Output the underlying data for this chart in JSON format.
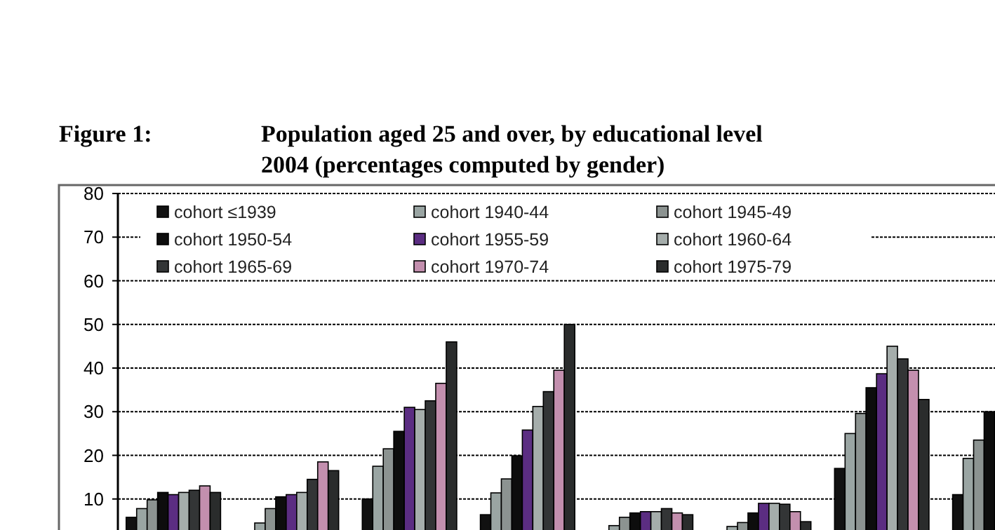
{
  "chart_data": {
    "type": "bar",
    "title": "Population aged 25 and over, by educational level",
    "subtitle": "2004 (percentages computed by gender)",
    "annotations": [
      "Figure 1:"
    ],
    "categories": [
      null,
      null,
      null,
      null,
      null,
      null,
      null,
      null
    ],
    "series": [
      {
        "name": "cohort ≤1939",
        "color": "#111111",
        "values": [
          5.8,
          null,
          10,
          6.4,
          null,
          null,
          17,
          11
        ]
      },
      {
        "name": "cohort 1940-44",
        "color": "#9aa5a3",
        "values": [
          7.8,
          4.5,
          17.5,
          11.4,
          3.9,
          3.7,
          25,
          19.3
        ]
      },
      {
        "name": "cohort 1945-49",
        "color": "#8c9391",
        "values": [
          9.8,
          7.8,
          21.5,
          14.6,
          5.8,
          4.6,
          29.6,
          23.5
        ]
      },
      {
        "name": "cohort 1950-54",
        "color": "#0d0d0d",
        "values": [
          11.5,
          10.5,
          25.5,
          19.9,
          6.8,
          6.8,
          35.5,
          30
        ]
      },
      {
        "name": "cohort 1955-59",
        "color": "#5b2d82",
        "values": [
          11,
          11,
          31,
          25.8,
          7.1,
          9,
          38.7,
          null
        ]
      },
      {
        "name": "cohort 1960-64",
        "color": "#a5adab",
        "values": [
          11.5,
          11.5,
          30.5,
          31.2,
          7.1,
          9,
          45,
          null
        ]
      },
      {
        "name": "cohort 1965-69",
        "color": "#333536",
        "values": [
          12,
          14.5,
          32.5,
          34.6,
          7.8,
          8.8,
          42.1,
          null
        ]
      },
      {
        "name": "cohort 1970-74",
        "color": "#c38fae",
        "values": [
          13,
          18.5,
          36.5,
          39.5,
          6.8,
          7.1,
          39.5,
          null
        ]
      },
      {
        "name": "cohort 1975-79",
        "color": "#2a2c2c",
        "values": [
          11.5,
          16.5,
          46,
          50,
          6.4,
          4.8,
          32.8,
          null
        ]
      }
    ],
    "ylim": [
      0,
      80
    ],
    "yticks": [
      10,
      20,
      30,
      40,
      50,
      60,
      70,
      80
    ],
    "grid": "y",
    "legend": "top",
    "tick_labels": "y"
  }
}
